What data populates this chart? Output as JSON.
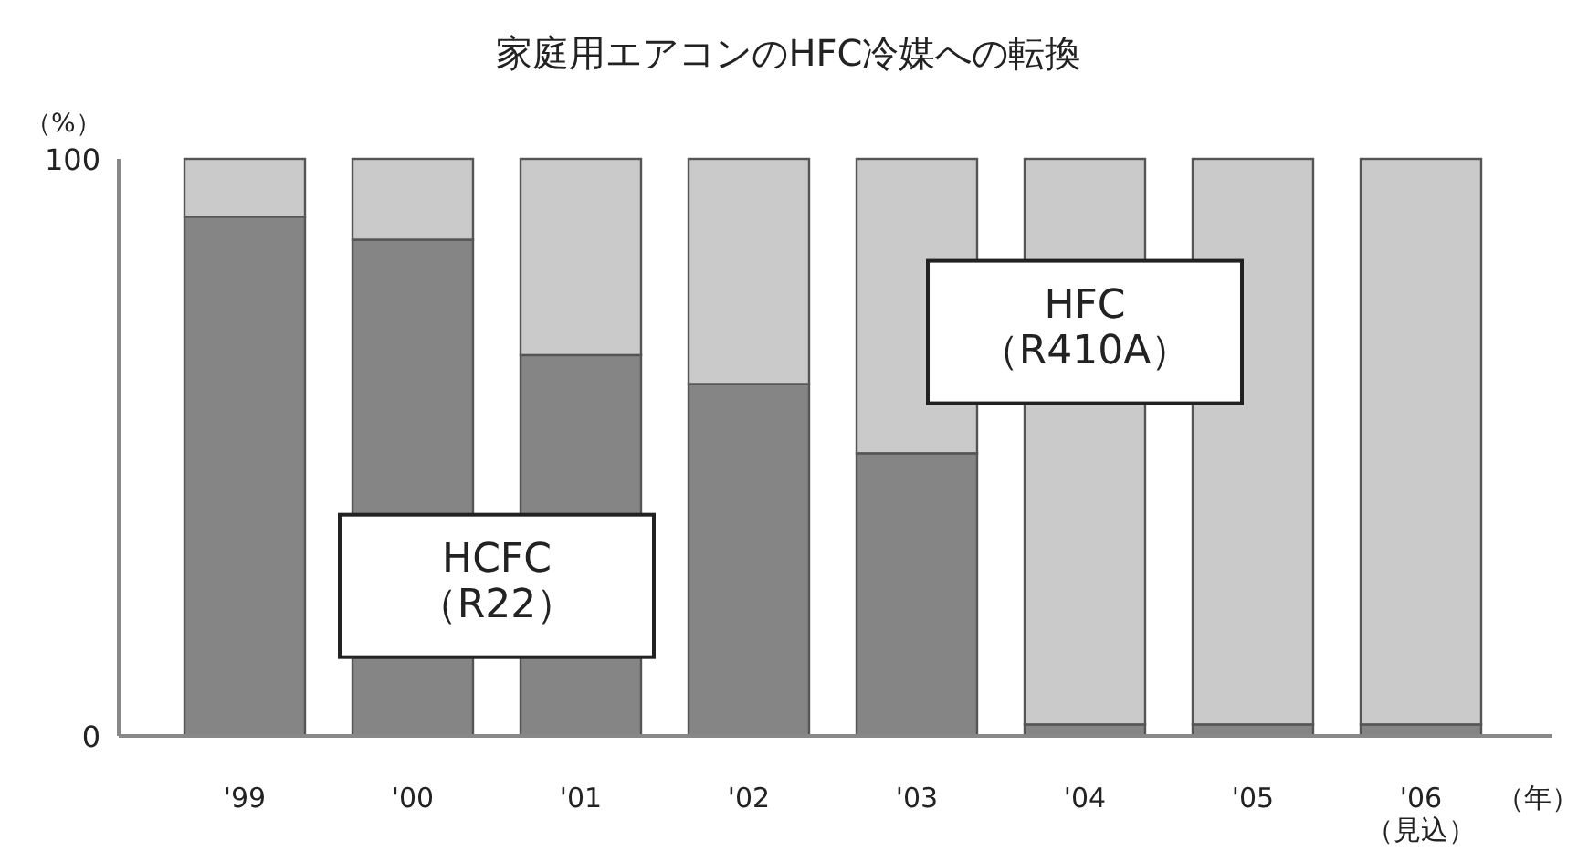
{
  "chart_data": {
    "type": "bar",
    "title": "家庭用エアコンのHFC冷媒への転換",
    "ylabel": "（%）",
    "xlabel": "（年）",
    "stacked": true,
    "categories": [
      "'99",
      "'00",
      "'01",
      "'02",
      "'03",
      "'04",
      "'05",
      "'06\n（見込）"
    ],
    "series": [
      {
        "name": "HCFC\n（R22）",
        "color": "#858585",
        "values": [
          90,
          86,
          66,
          61,
          49,
          2,
          2,
          2
        ]
      },
      {
        "name": "HFC\n（R410A）",
        "color": "#c9cac9",
        "values": [
          10,
          14,
          34,
          39,
          51,
          98,
          98,
          98
        ]
      }
    ],
    "ylim": [
      0,
      100
    ],
    "yticks": [
      0,
      100
    ],
    "grid": false,
    "legend": false
  }
}
